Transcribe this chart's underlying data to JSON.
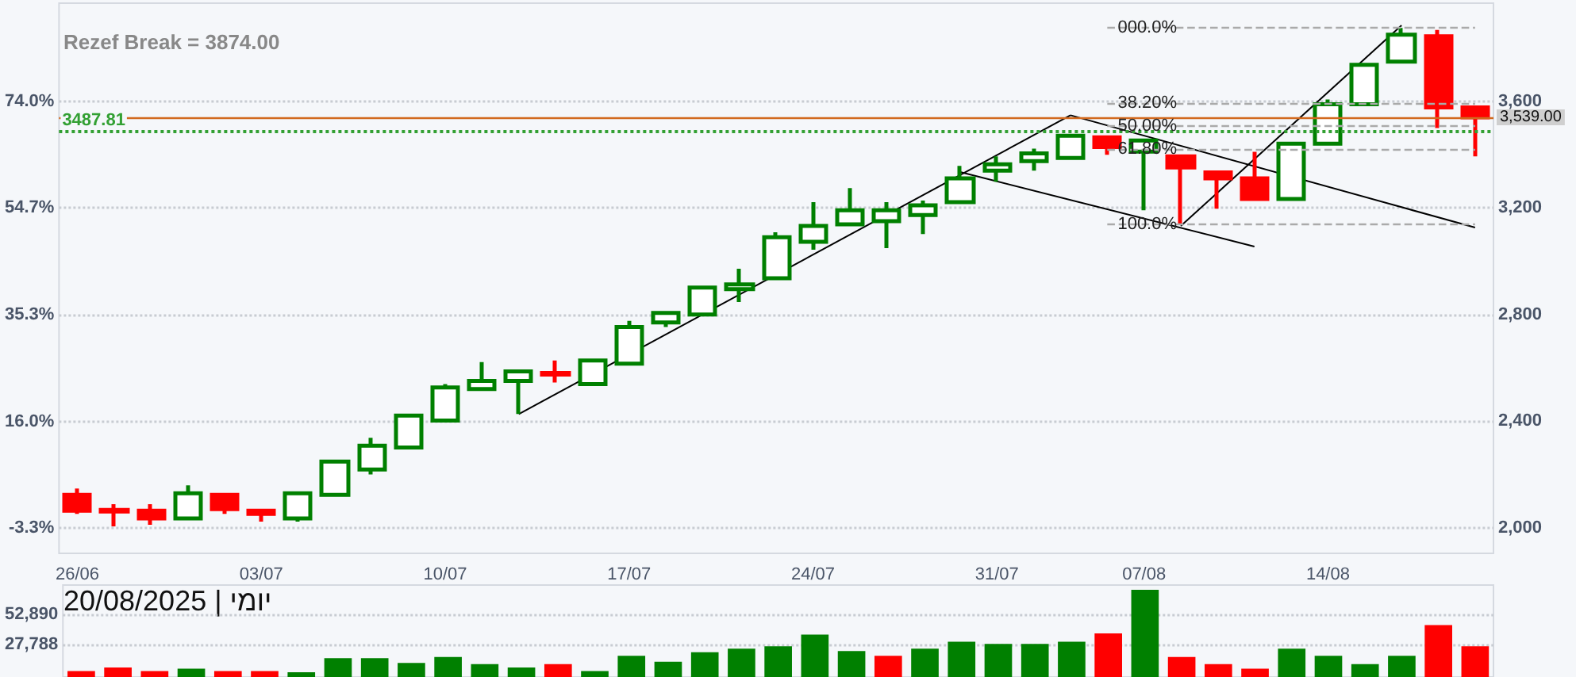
{
  "chart_data": [
    {
      "type": "candlestick",
      "annotations": [
        "Rezef Break = 3874.00",
        {
          "text": "000.0%",
          "y": 3874
        },
        {
          "text": "38.20%",
          "y": 3593
        },
        {
          "text": "50.00%",
          "y": 3506
        },
        {
          "text": "61.80%",
          "y": 3419
        },
        {
          "text": "100.0%",
          "y": 3138
        }
      ],
      "categories": [
        "26/06",
        null,
        null,
        null,
        null,
        "03/07",
        null,
        null,
        null,
        null,
        "10/07",
        null,
        null,
        null,
        null,
        "17/07",
        null,
        null,
        null,
        null,
        "24/07",
        null,
        null,
        null,
        null,
        "31/07",
        null,
        null,
        null,
        "07/08",
        null,
        null,
        null,
        null,
        "14/08",
        null,
        null,
        null,
        null
      ],
      "ohlc": [
        [
          2124,
          2148,
          2053,
          2065
        ],
        [
          2068,
          2089,
          2006,
          2062
        ],
        [
          2065,
          2089,
          2012,
          2036
        ],
        [
          2036,
          2160,
          2036,
          2130
        ],
        [
          2124,
          2124,
          2053,
          2071
        ],
        [
          2065,
          2065,
          2024,
          2053
        ],
        [
          2036,
          2130,
          2024,
          2130
        ],
        [
          2124,
          2249,
          2124,
          2249
        ],
        [
          2219,
          2338,
          2201,
          2308
        ],
        [
          2302,
          2427,
          2302,
          2421
        ],
        [
          2403,
          2539,
          2403,
          2527
        ],
        [
          2521,
          2622,
          2521,
          2551
        ],
        [
          2551,
          2587,
          2427,
          2587
        ],
        [
          2581,
          2628,
          2545,
          2575
        ],
        [
          2539,
          2628,
          2539,
          2628
        ],
        [
          2616,
          2776,
          2616,
          2753
        ],
        [
          2770,
          2806,
          2753,
          2806
        ],
        [
          2800,
          2901,
          2800,
          2901
        ],
        [
          2895,
          2972,
          2847,
          2913
        ],
        [
          2936,
          3108,
          2936,
          3090
        ],
        [
          3073,
          3221,
          3043,
          3132
        ],
        [
          3138,
          3274,
          3138,
          3191
        ],
        [
          3150,
          3221,
          3049,
          3191
        ],
        [
          3173,
          3227,
          3102,
          3209
        ],
        [
          3221,
          3357,
          3221,
          3310
        ],
        [
          3339,
          3393,
          3298,
          3363
        ],
        [
          3375,
          3422,
          3339,
          3404
        ],
        [
          3387,
          3470,
          3387,
          3470
        ],
        [
          3464,
          3464,
          3399,
          3428
        ],
        [
          3411,
          3452,
          3191,
          3452
        ],
        [
          3393,
          3393,
          3138,
          3351
        ],
        [
          3333,
          3339,
          3197,
          3310
        ],
        [
          3310,
          3410,
          3233,
          3233
        ],
        [
          3233,
          3440,
          3233,
          3440
        ],
        [
          3440,
          3606,
          3440,
          3588
        ],
        [
          3588,
          3736,
          3588,
          3736
        ],
        [
          3748,
          3874,
          3748,
          3849
        ],
        [
          3843,
          3867,
          3499,
          3576
        ],
        [
          3576,
          3576,
          3393,
          3539
        ]
      ],
      "colors": [
        "#ff0000",
        "#ff0000",
        "#ff0000",
        "#008000",
        "#ff0000",
        "#ff0000",
        "#008000",
        "#008000",
        "#008000",
        "#008000",
        "#008000",
        "#008000",
        "#008000",
        "#ff0000",
        "#008000",
        "#008000",
        "#008000",
        "#008000",
        "#008000",
        "#008000",
        "#008000",
        "#008000",
        "#008000",
        "#008000",
        "#008000",
        "#008000",
        "#008000",
        "#008000",
        "#ff0000",
        "#008000",
        "#ff0000",
        "#ff0000",
        "#ff0000",
        "#008000",
        "#008000",
        "#008000",
        "#008000",
        "#ff0000",
        "#ff0000"
      ],
      "series": [
        {
          "type": "line",
          "color": "#000000",
          "values": [
            null,
            null,
            null,
            null,
            null,
            null,
            null,
            null,
            null,
            null,
            null,
            null,
            2427,
            null,
            null,
            null,
            null,
            null,
            null,
            null,
            null,
            null,
            null,
            null,
            null,
            null,
            null,
            3547,
            null,
            null,
            null,
            null,
            null,
            null,
            null,
            null,
            null,
            null,
            null
          ]
        },
        {
          "type": "line",
          "color": "#000000",
          "values": [
            null,
            null,
            null,
            null,
            null,
            null,
            null,
            null,
            null,
            null,
            null,
            null,
            null,
            null,
            null,
            null,
            null,
            null,
            null,
            null,
            null,
            null,
            null,
            null,
            null,
            null,
            null,
            3547,
            null,
            null,
            null,
            null,
            null,
            null,
            null,
            null,
            null,
            null,
            3126
          ]
        },
        {
          "type": "line",
          "color": "#000000",
          "values": [
            null,
            null,
            null,
            null,
            null,
            null,
            null,
            null,
            null,
            null,
            null,
            null,
            null,
            null,
            null,
            null,
            null,
            null,
            null,
            null,
            null,
            null,
            null,
            null,
            3334,
            null,
            null,
            null,
            null,
            null,
            null,
            null,
            3055,
            null,
            null,
            null,
            null,
            null,
            null
          ]
        },
        {
          "type": "line",
          "color": "#000000",
          "values": [
            null,
            null,
            null,
            null,
            null,
            null,
            null,
            null,
            null,
            null,
            null,
            null,
            null,
            null,
            null,
            null,
            null,
            null,
            null,
            null,
            null,
            null,
            null,
            null,
            null,
            null,
            null,
            null,
            null,
            null,
            3132,
            null,
            null,
            null,
            null,
            null,
            3884,
            null,
            null
          ]
        }
      ],
      "marker": "none",
      "ylim": [
        1905,
        3967
      ],
      "yticks": [
        {
          "value": 2000,
          "label": "2,000"
        },
        {
          "value": 2400,
          "label": "2,400"
        },
        {
          "value": 2800,
          "label": "2,800"
        },
        {
          "value": 3200,
          "label": "3,200"
        },
        {
          "value": 3600,
          "label": "3,600"
        }
      ],
      "y2lim": [
        -7.89,
        91.73
      ],
      "y2ticks": [
        {
          "value": -3.3,
          "label": "-3.3%"
        },
        {
          "value": 16,
          "label": "16.0%"
        },
        {
          "value": 35.3,
          "label": "35.3%"
        },
        {
          "value": 54.7,
          "label": "54.7%"
        },
        {
          "value": 74,
          "label": "74.0%"
        }
      ],
      "ref_lines": [
        {
          "axis": "y",
          "value": 3874,
          "color": "#aaaaaa",
          "line_style": "dashed"
        },
        {
          "axis": "y",
          "value": 3593,
          "color": "#aaaaaa",
          "line_style": "dashed"
        },
        {
          "axis": "y",
          "value": 3506,
          "color": "#aaaaaa",
          "line_style": "dashed"
        },
        {
          "axis": "y",
          "value": 3419,
          "color": "#aaaaaa",
          "line_style": "dashed"
        },
        {
          "axis": "y",
          "value": 3138,
          "color": "#aaaaaa",
          "line_style": "dashed"
        },
        {
          "axis": "y",
          "value": 3539,
          "label": "3,539.00",
          "color": "#d2691e",
          "line_style": "solid"
        },
        {
          "axis": "y",
          "value": 3487.81,
          "label": "3487.81",
          "color": "#33a033",
          "line_style": "dotted"
        }
      ],
      "grid": "y"
    },
    {
      "type": "bar",
      "annotations": [
        "יומי | 20/08/2025"
      ],
      "categories": [
        null,
        null,
        null,
        null,
        null,
        null,
        null,
        null,
        null,
        null,
        null,
        null,
        null,
        null,
        null,
        null,
        null,
        null,
        null,
        null,
        null,
        null,
        null,
        null,
        null,
        null,
        null,
        null,
        null,
        null,
        null,
        null,
        null,
        null,
        null,
        null,
        null,
        null,
        null
      ],
      "values": [
        5000,
        8000,
        5000,
        7000,
        5000,
        5000,
        4000,
        16000,
        16000,
        12000,
        17000,
        11000,
        8000,
        11000,
        5000,
        18000,
        13000,
        21000,
        24000,
        26000,
        36000,
        22000,
        18000,
        24000,
        30000,
        28000,
        28000,
        30000,
        37000,
        74000,
        17000,
        11000,
        7000,
        24000,
        18000,
        11000,
        18000,
        44000,
        26000
      ],
      "colors": [
        "#ff0000",
        "#ff0000",
        "#ff0000",
        "#008000",
        "#ff0000",
        "#ff0000",
        "#008000",
        "#008000",
        "#008000",
        "#008000",
        "#008000",
        "#008000",
        "#008000",
        "#ff0000",
        "#008000",
        "#008000",
        "#008000",
        "#008000",
        "#008000",
        "#008000",
        "#008000",
        "#008000",
        "#ff0000",
        "#008000",
        "#008000",
        "#008000",
        "#008000",
        "#008000",
        "#ff0000",
        "#008000",
        "#ff0000",
        "#ff0000",
        "#ff0000",
        "#008000",
        "#008000",
        "#008000",
        "#008000",
        "#ff0000",
        "#ff0000"
      ],
      "ylim": [
        0,
        78000
      ],
      "yticks": [
        {
          "value": 27788,
          "label": "27,788"
        },
        {
          "value": 52890,
          "label": "52,890"
        }
      ],
      "grid": "y",
      "tick_labels": "y"
    }
  ]
}
